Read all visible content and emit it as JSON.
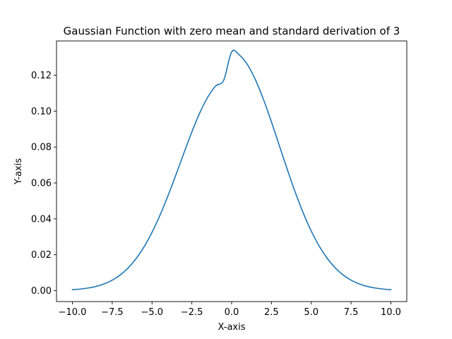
{
  "chart_data": {
    "type": "line",
    "title": "Gaussian Function with zero mean and standard derivation of 3",
    "xlabel": "X-axis",
    "ylabel": "Y-axis",
    "xlim": [
      -11.0,
      11.0
    ],
    "ylim": [
      -0.0061,
      0.1391
    ],
    "grid": false,
    "x_ticks": [
      -10.0,
      -7.5,
      -5.0,
      -2.5,
      0.0,
      2.5,
      5.0,
      7.5,
      10.0
    ],
    "x_tick_labels": [
      "−10.0",
      "−7.5",
      "−5.0",
      "−2.5",
      "0.0",
      "2.5",
      "5.0",
      "7.5",
      "10.0"
    ],
    "y_ticks": [
      0.0,
      0.02,
      0.04,
      0.06,
      0.08,
      0.1,
      0.12
    ],
    "y_tick_labels": [
      "0.00",
      "0.02",
      "0.04",
      "0.06",
      "0.08",
      "0.10",
      "0.12"
    ],
    "series": [
      {
        "color": "#1f77b4",
        "x": [
          -10.0,
          -9.5,
          -9.0,
          -8.5,
          -8.0,
          -7.5,
          -7.0,
          -6.5,
          -6.0,
          -5.5,
          -5.0,
          -4.5,
          -4.0,
          -3.5,
          -3.0,
          -2.5,
          -2.0,
          -1.5,
          -1.0,
          -0.5,
          0.0,
          0.5,
          1.0,
          1.5,
          2.0,
          2.5,
          3.0,
          3.5,
          4.0,
          4.5,
          5.0,
          5.5,
          6.0,
          6.5,
          7.0,
          7.5,
          8.0,
          8.5,
          9.0,
          9.5,
          10.0
        ],
        "y": [
          0.00051,
          0.00089,
          0.00148,
          0.00239,
          0.0038,
          0.00584,
          0.00873,
          0.01267,
          0.01784,
          0.02441,
          0.03251,
          0.04204,
          0.05285,
          0.06453,
          0.07664,
          0.0884,
          0.09907,
          0.10782,
          0.11403,
          0.11723,
          0.13298,
          0.13114,
          0.12579,
          0.11735,
          0.10648,
          0.09397,
          0.08066,
          0.06736,
          0.05467,
          0.04318,
          0.03317,
          0.02479,
          0.018,
          0.01272,
          0.00873,
          0.00584,
          0.0038,
          0.00239,
          0.00148,
          0.00089,
          0.00051
        ]
      }
    ]
  }
}
